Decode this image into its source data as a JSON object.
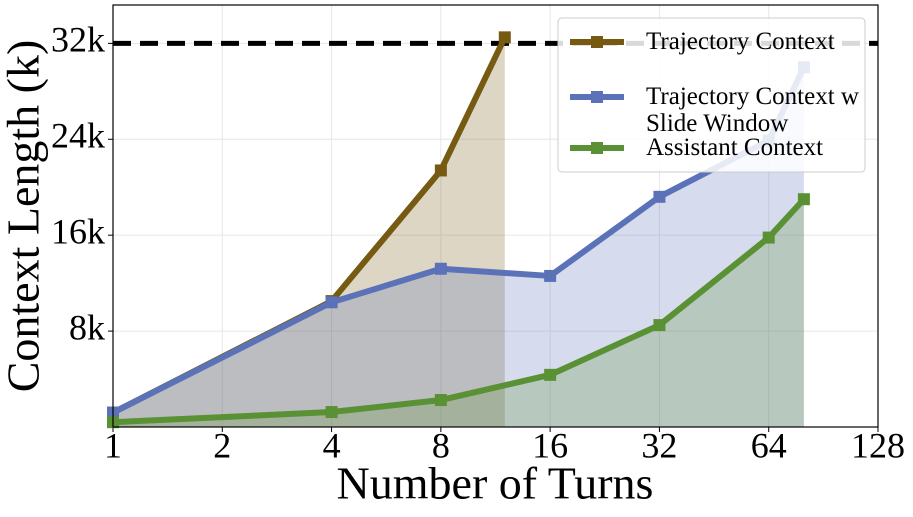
{
  "chart_data": {
    "type": "line",
    "xlabel": "Number of Turns",
    "ylabel": "Context Length (k)",
    "xscale": "log2",
    "xlim": [
      1,
      128
    ],
    "xticks": [
      1,
      2,
      4,
      8,
      16,
      32,
      64,
      128
    ],
    "ylim": [
      0,
      35.2
    ],
    "yticks": [
      {
        "value": 8,
        "label": "8k"
      },
      {
        "value": 16,
        "label": "16k"
      },
      {
        "value": 24,
        "label": "24k"
      },
      {
        "value": 32,
        "label": "32k"
      }
    ],
    "grid": true,
    "hline": 32,
    "area_fill": true,
    "legend": "upper right",
    "series": [
      {
        "name": "Trajectory Context",
        "color": "#765a12",
        "x": [
          1,
          4,
          8,
          12
        ],
        "values": [
          1.2,
          10.5,
          21.4,
          32.5
        ]
      },
      {
        "name": "Trajectory Context w Slide Window",
        "color": "#5b72b8",
        "x": [
          1,
          4,
          8,
          16,
          32,
          64,
          80
        ],
        "values": [
          1.2,
          10.4,
          13.2,
          12.6,
          19.2,
          23.9,
          30.0
        ]
      },
      {
        "name": "Assistant Context",
        "color": "#5a9135",
        "x": [
          1,
          4,
          8,
          16,
          32,
          64,
          80
        ],
        "values": [
          0.4,
          1.25,
          2.25,
          4.35,
          8.5,
          15.8,
          19.0
        ]
      }
    ]
  }
}
